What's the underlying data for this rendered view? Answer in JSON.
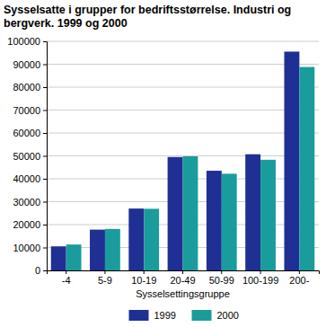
{
  "chart_data": {
    "type": "bar",
    "title": "Sysselsatte i grupper for bedriftsstørrelse. Industri og bergverk. 1999 og 2000",
    "x_label": "Sysselsettingsgruppe",
    "categories": [
      "-4",
      "5-9",
      "10-19",
      "20-49",
      "50-99",
      "100-199",
      "200-"
    ],
    "series": [
      {
        "name": "1999",
        "color": "#1f2f93",
        "values": [
          10500,
          17800,
          27000,
          49500,
          43500,
          50700,
          95500
        ]
      },
      {
        "name": "2000",
        "color": "#1a9c9c",
        "values": [
          11300,
          18100,
          26900,
          49800,
          42200,
          48300,
          88800
        ]
      }
    ],
    "ylim": [
      0,
      100000
    ],
    "yticks": [
      0,
      10000,
      20000,
      30000,
      40000,
      50000,
      60000,
      70000,
      80000,
      90000,
      100000
    ],
    "grid": true,
    "legend": "bottom"
  }
}
